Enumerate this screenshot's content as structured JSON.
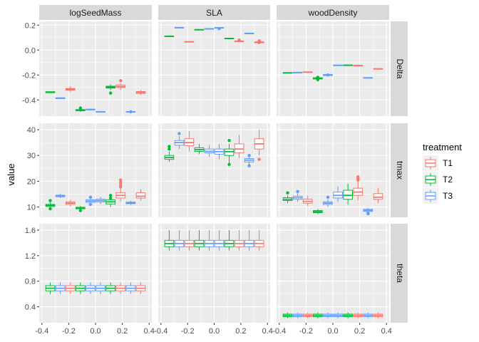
{
  "chart_data": {
    "type": "boxplot",
    "ylabel": "value",
    "columns": [
      "logSeedMass",
      "SLA",
      "woodDensity"
    ],
    "rows": [
      "Delta",
      "tmax",
      "theta"
    ],
    "x_ticks": [
      "-0.4",
      "-0.2",
      "0.0",
      "0.2",
      "0.4"
    ],
    "x_tick_values": [
      -0.4,
      -0.2,
      0.0,
      0.2,
      0.4
    ],
    "xlim": [
      -0.42,
      0.42
    ],
    "row_scales": [
      {
        "row": "Delta",
        "ylim": [
          -0.53,
          0.23
        ],
        "ticks": [
          "0.2",
          "0.0",
          "-0.2",
          "-0.4"
        ],
        "tick_values": [
          0.2,
          0.0,
          -0.2,
          -0.4
        ]
      },
      {
        "row": "tmax",
        "ylim": [
          6.0,
          42.5
        ],
        "ticks": [
          "40",
          "30",
          "20",
          "10"
        ],
        "tick_values": [
          40,
          30,
          20,
          10
        ]
      },
      {
        "row": "theta",
        "ylim": [
          0.15,
          1.7
        ],
        "ticks": [
          "1.6",
          "1.2",
          "0.8",
          "0.4"
        ],
        "tick_values": [
          1.6,
          1.2,
          0.8,
          0.4
        ]
      }
    ],
    "box_x_centers": [
      -0.3375,
      -0.2625,
      -0.1875,
      -0.1125,
      -0.0375,
      0.0375,
      0.1125,
      0.1875,
      0.2625,
      0.3375
    ],
    "box_treatments": [
      "T2",
      "T3",
      "T1",
      "T2",
      "T3",
      "T3",
      "T2",
      "T1",
      "T3",
      "T1"
    ],
    "legend": {
      "title": "treatment",
      "position": "right",
      "entries": [
        {
          "label": "T1",
          "color": "#F8766D"
        },
        {
          "label": "T2",
          "color": "#00BA38"
        },
        {
          "label": "T3",
          "color": "#619CFF"
        }
      ]
    },
    "panels": [
      {
        "row": "Delta",
        "col": "logSeedMass",
        "boxes": [
          [
            -0.345,
            -0.342,
            -0.338,
            -0.334,
            -0.33,
            []
          ],
          [
            -0.392,
            -0.389,
            -0.386,
            -0.383,
            -0.38,
            []
          ],
          [
            -0.335,
            -0.322,
            -0.315,
            -0.308,
            -0.29,
            []
          ],
          [
            -0.495,
            -0.487,
            -0.482,
            -0.477,
            -0.47,
            [
              -0.465
            ]
          ],
          [
            -0.485,
            -0.48,
            -0.477,
            -0.474,
            -0.47,
            []
          ],
          [
            -0.5,
            -0.497,
            -0.495,
            -0.493,
            -0.49,
            []
          ],
          [
            -0.32,
            -0.305,
            -0.298,
            -0.29,
            -0.275,
            [
              -0.345
            ]
          ],
          [
            -0.32,
            -0.3,
            -0.292,
            -0.28,
            -0.265,
            [
              -0.245
            ]
          ],
          [
            -0.503,
            -0.497,
            -0.495,
            -0.493,
            -0.488,
            [
              -0.495
            ]
          ],
          [
            -0.36,
            -0.348,
            -0.34,
            -0.333,
            -0.32,
            []
          ]
        ]
      },
      {
        "row": "Delta",
        "col": "SLA",
        "boxes": [
          [
            0.105,
            0.107,
            0.11,
            0.112,
            0.115,
            []
          ],
          [
            0.178,
            0.179,
            0.18,
            0.181,
            0.182,
            []
          ],
          [
            0.062,
            0.064,
            0.066,
            0.068,
            0.07,
            []
          ],
          [
            0.159,
            0.161,
            0.163,
            0.165,
            0.167,
            []
          ],
          [
            0.166,
            0.168,
            0.17,
            0.172,
            0.174,
            []
          ],
          [
            0.174,
            0.176,
            0.178,
            0.18,
            0.182,
            [
              0.172
            ]
          ],
          [
            0.088,
            0.091,
            0.093,
            0.095,
            0.098,
            []
          ],
          [
            0.064,
            0.067,
            0.07,
            0.073,
            0.077,
            [
              0.08
            ]
          ],
          [
            0.126,
            0.13,
            0.133,
            0.136,
            0.14,
            []
          ],
          [
            0.052,
            0.058,
            0.062,
            0.066,
            0.072,
            [
              0.068,
              0.074,
              0.06
            ]
          ]
        ]
      },
      {
        "row": "Delta",
        "col": "woodDensity",
        "boxes": [
          [
            -0.188,
            -0.185,
            -0.183,
            -0.181,
            -0.178,
            []
          ],
          [
            -0.182,
            -0.181,
            -0.18,
            -0.179,
            -0.178,
            []
          ],
          [
            -0.182,
            -0.179,
            -0.177,
            -0.175,
            -0.172,
            []
          ],
          [
            -0.24,
            -0.232,
            -0.228,
            -0.222,
            -0.212,
            [
              -0.218,
              -0.238
            ]
          ],
          [
            -0.21,
            -0.204,
            -0.2,
            -0.196,
            -0.19,
            [
              -0.2
            ]
          ],
          [
            -0.125,
            -0.123,
            -0.122,
            -0.121,
            -0.12,
            []
          ],
          [
            -0.127,
            -0.124,
            -0.122,
            -0.12,
            -0.117,
            []
          ],
          [
            -0.133,
            -0.128,
            -0.125,
            -0.122,
            -0.117,
            []
          ],
          [
            -0.228,
            -0.225,
            -0.223,
            -0.221,
            -0.218,
            []
          ],
          [
            -0.156,
            -0.153,
            -0.151,
            -0.149,
            -0.146,
            []
          ]
        ]
      },
      {
        "row": "tmax",
        "col": "logSeedMass",
        "boxes": [
          [
            9.5,
            10.2,
            10.6,
            11.0,
            11.8,
            [
              12.5,
              9.3
            ]
          ],
          [
            13.5,
            14.0,
            14.3,
            14.6,
            15.2,
            []
          ],
          [
            10.3,
            11.0,
            11.5,
            12.0,
            12.8,
            []
          ],
          [
            8.8,
            9.3,
            9.6,
            9.9,
            10.4,
            [
              8.6
            ]
          ],
          [
            11.0,
            11.8,
            12.3,
            12.8,
            13.5,
            [
              11.0,
              13.8
            ]
          ],
          [
            11.0,
            12.0,
            12.5,
            13.0,
            14.0,
            []
          ],
          [
            10.0,
            11.2,
            12.0,
            12.8,
            14.0,
            [
              14.5,
              13.5
            ]
          ],
          [
            12.0,
            13.5,
            14.5,
            15.5,
            17.5,
            [
              18.5,
              19.5,
              20.5,
              17.8
            ]
          ],
          [
            10.8,
            11.3,
            11.6,
            11.9,
            12.4,
            []
          ],
          [
            12.5,
            13.5,
            14.2,
            15.5,
            17.0,
            []
          ]
        ]
      },
      {
        "row": "tmax",
        "col": "SLA",
        "boxes": [
          [
            27.5,
            28.5,
            29.2,
            30.0,
            31.5,
            [
              32.5,
              33.5
            ]
          ],
          [
            32.5,
            34.0,
            35.0,
            35.8,
            37.5,
            [
              38.5
            ]
          ],
          [
            31.5,
            33.8,
            35.0,
            36.5,
            39.5,
            []
          ],
          [
            30.5,
            31.6,
            32.3,
            33.0,
            34.5,
            []
          ],
          [
            29.5,
            31.0,
            31.6,
            32.5,
            34.0,
            []
          ],
          [
            28.5,
            30.5,
            31.5,
            32.5,
            34.5,
            []
          ],
          [
            27.0,
            30.0,
            31.5,
            32.5,
            34.5,
            [
              26.5,
              35.8
            ]
          ],
          [
            29.0,
            31.0,
            32.5,
            34.5,
            38.0,
            []
          ],
          [
            26.5,
            27.5,
            28.2,
            28.8,
            29.5,
            [
              30.0,
              26.0
            ]
          ],
          [
            30.0,
            32.5,
            34.5,
            36.5,
            40.0,
            [
              28.5
            ]
          ]
        ]
      },
      {
        "row": "tmax",
        "col": "woodDensity",
        "boxes": [
          [
            11.5,
            12.5,
            13.0,
            13.6,
            14.5,
            [
              15.5
            ]
          ],
          [
            12.0,
            13.0,
            13.6,
            14.2,
            15.5,
            [
              16.0
            ]
          ],
          [
            10.5,
            11.5,
            12.2,
            13.0,
            14.5,
            []
          ],
          [
            7.3,
            7.8,
            8.2,
            8.6,
            9.2,
            []
          ],
          [
            10.0,
            11.0,
            11.5,
            12.0,
            13.0,
            [
              13.8
            ]
          ],
          [
            12.0,
            13.5,
            14.5,
            15.8,
            18.0,
            []
          ],
          [
            11.0,
            13.0,
            14.5,
            16.5,
            19.0,
            []
          ],
          [
            12.5,
            14.5,
            15.8,
            17.3,
            20.0,
            [
              21.0,
              21.7,
              20.5
            ]
          ],
          [
            7.8,
            8.3,
            8.7,
            9.1,
            9.6,
            [
              7.4,
              7.6
            ]
          ],
          [
            11.5,
            13.0,
            13.8,
            15.2,
            17.5,
            []
          ]
        ]
      },
      {
        "row": "theta",
        "col": "logSeedMass",
        "boxes": [
          [
            0.6,
            0.65,
            0.69,
            0.73,
            0.78,
            []
          ],
          [
            0.6,
            0.65,
            0.69,
            0.73,
            0.78,
            []
          ],
          [
            0.6,
            0.65,
            0.69,
            0.73,
            0.78,
            []
          ],
          [
            0.6,
            0.65,
            0.69,
            0.73,
            0.78,
            []
          ],
          [
            0.6,
            0.65,
            0.69,
            0.73,
            0.78,
            []
          ],
          [
            0.6,
            0.65,
            0.69,
            0.73,
            0.78,
            []
          ],
          [
            0.6,
            0.65,
            0.69,
            0.73,
            0.78,
            []
          ],
          [
            0.6,
            0.65,
            0.69,
            0.73,
            0.78,
            []
          ],
          [
            0.6,
            0.65,
            0.69,
            0.73,
            0.78,
            []
          ],
          [
            0.6,
            0.65,
            0.69,
            0.73,
            0.78,
            []
          ]
        ]
      },
      {
        "row": "theta",
        "col": "SLA",
        "boxes": [
          [
            1.28,
            1.34,
            1.39,
            1.44,
            1.6,
            []
          ],
          [
            1.28,
            1.34,
            1.39,
            1.44,
            1.6,
            []
          ],
          [
            1.28,
            1.34,
            1.39,
            1.44,
            1.6,
            []
          ],
          [
            1.28,
            1.34,
            1.39,
            1.44,
            1.6,
            []
          ],
          [
            1.28,
            1.34,
            1.39,
            1.44,
            1.6,
            []
          ],
          [
            1.28,
            1.34,
            1.39,
            1.44,
            1.6,
            []
          ],
          [
            1.28,
            1.34,
            1.39,
            1.44,
            1.6,
            []
          ],
          [
            1.28,
            1.34,
            1.39,
            1.44,
            1.6,
            []
          ],
          [
            1.28,
            1.34,
            1.39,
            1.44,
            1.6,
            []
          ],
          [
            1.28,
            1.34,
            1.39,
            1.44,
            1.6,
            []
          ]
        ]
      },
      {
        "row": "theta",
        "col": "woodDensity",
        "boxes": [
          [
            0.22,
            0.245,
            0.265,
            0.285,
            0.31,
            []
          ],
          [
            0.22,
            0.245,
            0.265,
            0.285,
            0.31,
            []
          ],
          [
            0.22,
            0.245,
            0.265,
            0.285,
            0.31,
            []
          ],
          [
            0.22,
            0.245,
            0.265,
            0.285,
            0.31,
            []
          ],
          [
            0.22,
            0.245,
            0.265,
            0.285,
            0.31,
            []
          ],
          [
            0.22,
            0.245,
            0.265,
            0.285,
            0.31,
            []
          ],
          [
            0.22,
            0.245,
            0.265,
            0.285,
            0.31,
            []
          ],
          [
            0.22,
            0.245,
            0.265,
            0.285,
            0.31,
            []
          ],
          [
            0.22,
            0.245,
            0.265,
            0.285,
            0.31,
            []
          ],
          [
            0.22,
            0.245,
            0.265,
            0.285,
            0.31,
            []
          ]
        ]
      }
    ]
  }
}
